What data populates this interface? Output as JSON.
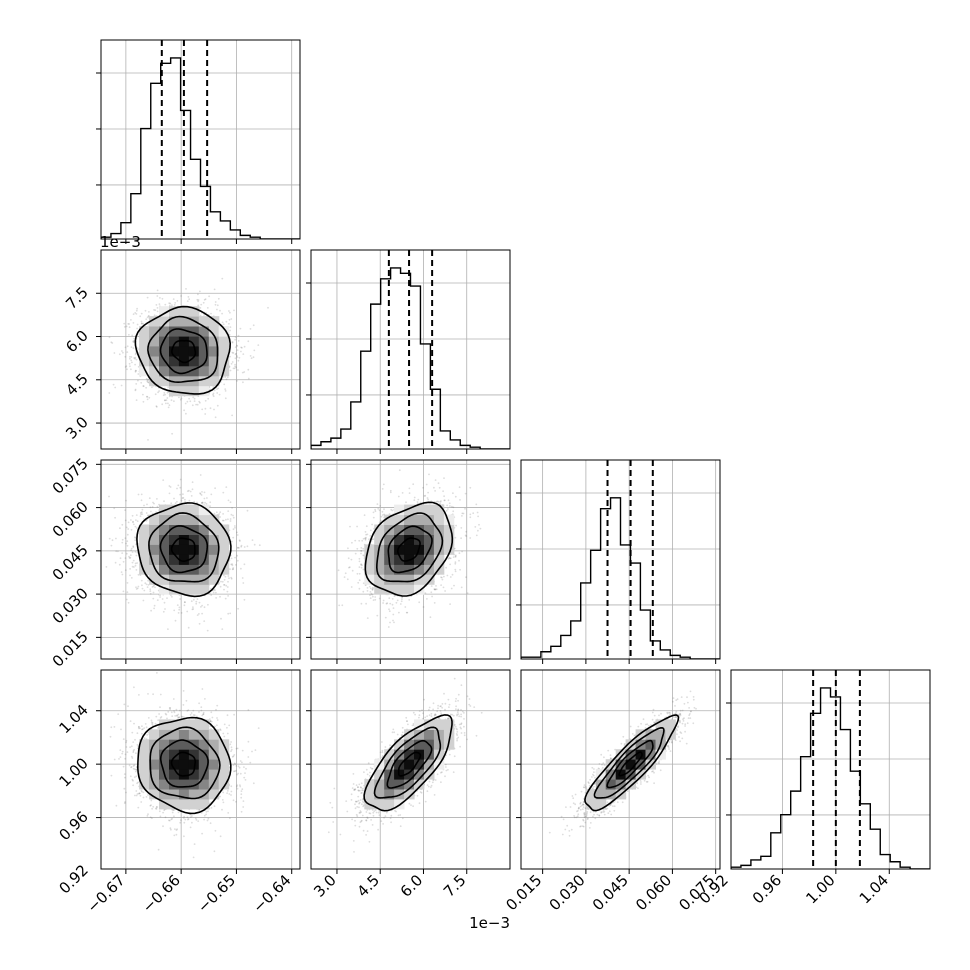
{
  "chart_data": {
    "type": "corner",
    "title": "",
    "parameters": [
      "",
      "",
      "",
      ""
    ],
    "ranges": [
      [
        -0.6745,
        -0.6385
      ],
      [
        0.0021,
        0.009
      ],
      [
        0.0075,
        0.0765
      ],
      [
        0.9215,
        1.0705
      ]
    ],
    "ticks": [
      [
        -0.67,
        -0.66,
        -0.65,
        -0.64
      ],
      [
        0.003,
        0.0045,
        0.006,
        0.0075
      ],
      [
        0.015,
        0.03,
        0.045,
        0.06,
        0.075
      ],
      [
        0.92,
        0.96,
        1.0,
        1.04
      ]
    ],
    "tick_labels": [
      [
        "−0.67",
        "−0.66",
        "−0.65",
        "−0.64"
      ],
      [
        "3.0",
        "4.5",
        "6.0",
        "7.5"
      ],
      [
        "0.015",
        "0.030",
        "0.045",
        "0.060",
        "0.075"
      ],
      [
        "0.92",
        "0.96",
        "1.00",
        "1.04"
      ]
    ],
    "offset_text": "1e−3",
    "offset_param": 1,
    "quantiles": [
      [
        -0.6635,
        -0.6595,
        -0.6553
      ],
      [
        0.0048,
        0.0055,
        0.0063
      ],
      [
        0.0375,
        0.0455,
        0.0532
      ],
      [
        0.983,
        1.0,
        1.018
      ]
    ],
    "mean": [
      -0.6595,
      0.0055,
      0.0455,
      1.0
    ],
    "std": [
      0.0042,
      0.00075,
      0.0079,
      0.0175
    ],
    "correlation": [
      [
        1.0,
        -0.05,
        -0.05,
        -0.05
      ],
      [
        -0.05,
        1.0,
        0.3,
        0.72
      ],
      [
        -0.05,
        0.3,
        1.0,
        0.88
      ],
      [
        -0.05,
        0.72,
        0.88,
        1.0
      ]
    ],
    "histograms": [
      {
        "bins": 20,
        "range": [
          -0.6745,
          -0.6385
        ],
        "counts": [
          0.01,
          0.03,
          0.09,
          0.25,
          0.61,
          0.86,
          0.97,
          1.0,
          0.71,
          0.44,
          0.29,
          0.15,
          0.1,
          0.05,
          0.02,
          0.01,
          0.0,
          0.0,
          0.0,
          0.0
        ]
      },
      {
        "bins": 20,
        "range": [
          0.0021,
          0.009
        ],
        "counts": [
          0.02,
          0.04,
          0.06,
          0.11,
          0.26,
          0.54,
          0.8,
          0.94,
          1.0,
          0.97,
          0.9,
          0.58,
          0.33,
          0.1,
          0.05,
          0.02,
          0.01,
          0.0,
          0.0,
          0.0
        ]
      },
      {
        "bins": 20,
        "range": [
          0.0075,
          0.0765
        ],
        "counts": [
          0.01,
          0.01,
          0.04,
          0.07,
          0.13,
          0.21,
          0.42,
          0.6,
          0.83,
          0.89,
          0.63,
          0.53,
          0.27,
          0.1,
          0.05,
          0.02,
          0.01,
          0.0,
          0.0,
          0.0
        ]
      },
      {
        "bins": 20,
        "range": [
          0.9215,
          1.0705
        ],
        "counts": [
          0.01,
          0.02,
          0.05,
          0.07,
          0.2,
          0.3,
          0.43,
          0.62,
          0.86,
          1.0,
          0.95,
          0.77,
          0.54,
          0.36,
          0.22,
          0.08,
          0.04,
          0.01,
          0.0,
          0.0
        ]
      }
    ],
    "density_levels": [
      0.118,
      0.393,
      0.675,
      0.865
    ],
    "grid": true,
    "colors": {
      "line": "#000000",
      "points": "#666666",
      "grid": "#b0b0b0",
      "background": "#ffffff"
    }
  }
}
